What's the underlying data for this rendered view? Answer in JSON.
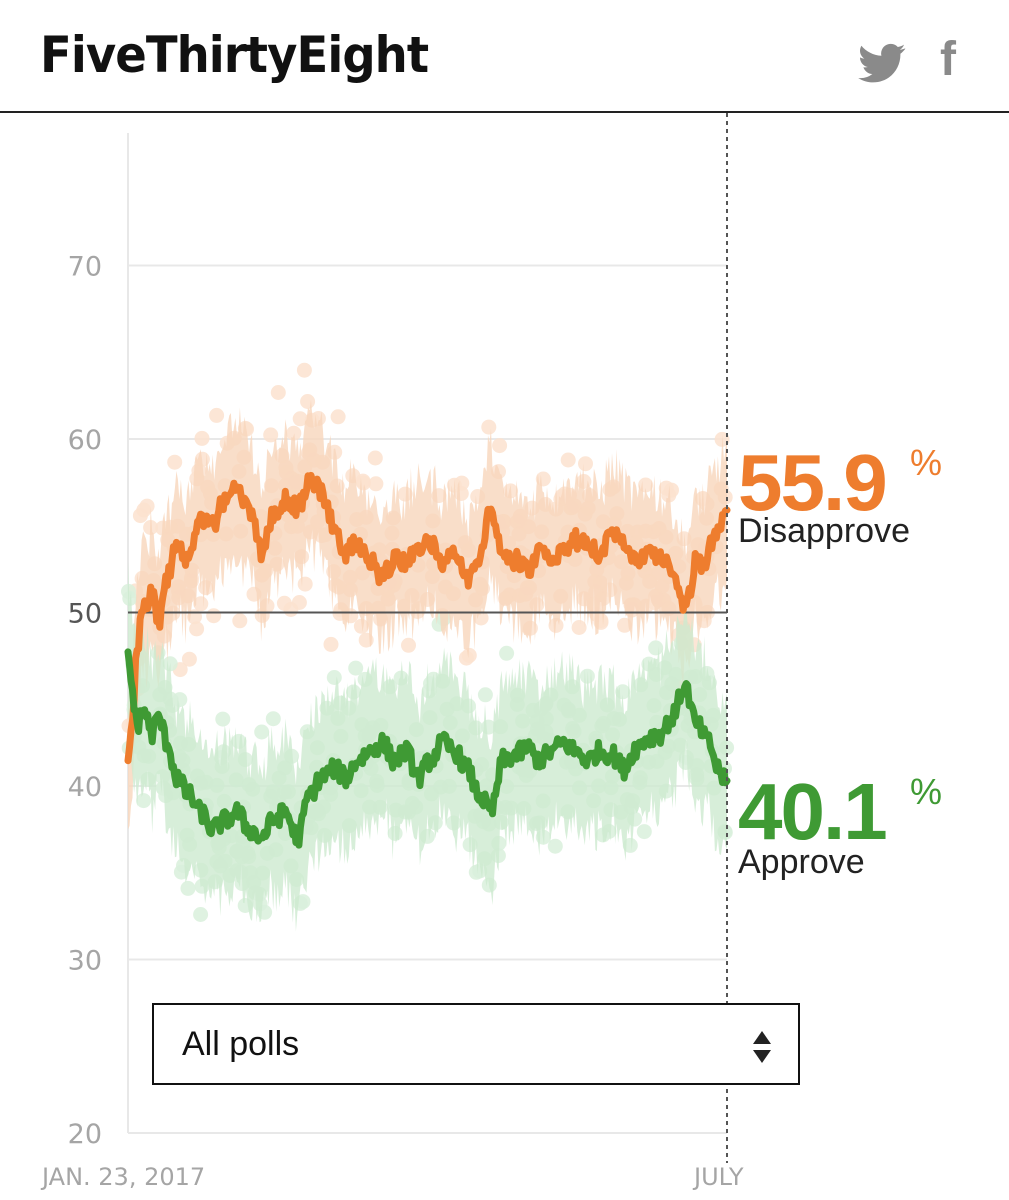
{
  "header": {
    "logo": "FiveThirtyEight",
    "social": [
      {
        "name": "twitter",
        "icon": "twitter-bird-icon"
      },
      {
        "name": "facebook",
        "icon": "facebook-f-icon",
        "glyph": "f"
      }
    ]
  },
  "filter": {
    "selected": "All polls"
  },
  "colors": {
    "disapprove": "#ee7d2e",
    "approve": "#3f9a34",
    "disapprove_band": "#f8d6bc",
    "approve_band": "#cdeacf",
    "disapprove_dot": "#fbe2cf",
    "approve_dot": "#d9f0dc",
    "grid": "#e8e8e8",
    "fifty_line": "#555555"
  },
  "chart_data": {
    "type": "line",
    "title": "",
    "xlabel": "",
    "ylabel": "",
    "x_start_label": "JAN. 23, 2017",
    "x_end_label": "JULY",
    "day_count": 160,
    "ylim": [
      20,
      78
    ],
    "yticks": [
      70,
      60,
      50,
      40,
      30,
      20
    ],
    "series": [
      {
        "name": "Disapprove",
        "final": "55.9",
        "unit": "%",
        "band_halfwidth": 3.2,
        "anchors": [
          [
            0,
            41.2
          ],
          [
            1,
            43
          ],
          [
            3,
            48
          ],
          [
            5,
            50.5
          ],
          [
            8,
            51
          ],
          [
            10,
            49.5
          ],
          [
            13,
            52
          ],
          [
            16,
            54
          ],
          [
            20,
            53
          ],
          [
            24,
            55.5
          ],
          [
            28,
            55
          ],
          [
            32,
            56.5
          ],
          [
            36,
            57.2
          ],
          [
            40,
            56
          ],
          [
            44,
            53.5
          ],
          [
            48,
            55.5
          ],
          [
            52,
            56.5
          ],
          [
            56,
            56
          ],
          [
            60,
            57.5
          ],
          [
            64,
            57
          ],
          [
            68,
            55
          ],
          [
            72,
            53.5
          ],
          [
            76,
            54
          ],
          [
            80,
            53
          ],
          [
            84,
            52
          ],
          [
            88,
            53
          ],
          [
            92,
            52.8
          ],
          [
            96,
            53.8
          ],
          [
            100,
            54
          ],
          [
            104,
            52.5
          ],
          [
            108,
            53.5
          ],
          [
            112,
            52
          ],
          [
            116,
            53
          ],
          [
            120,
            56
          ],
          [
            124,
            53.5
          ],
          [
            128,
            53
          ],
          [
            132,
            52.5
          ],
          [
            136,
            53.5
          ],
          [
            140,
            52.8
          ],
          [
            144,
            53.5
          ],
          [
            148,
            54.2
          ],
          [
            152,
            54
          ],
          [
            156,
            53.2
          ],
          [
            160,
            54.8
          ],
          [
            164,
            54.2
          ],
          [
            168,
            53
          ],
          [
            172,
            53.5
          ],
          [
            176,
            53
          ],
          [
            180,
            52.5
          ],
          [
            184,
            50
          ],
          [
            188,
            53
          ],
          [
            190,
            52.5
          ],
          [
            193,
            54
          ],
          [
            196,
            55
          ],
          [
            198,
            55.9
          ]
        ]
      },
      {
        "name": "Approve",
        "final": "40.1",
        "unit": "%",
        "band_halfwidth": 3.8,
        "anchors": [
          [
            0,
            47.8
          ],
          [
            1,
            46
          ],
          [
            3,
            43.5
          ],
          [
            5,
            44.5
          ],
          [
            8,
            43
          ],
          [
            10,
            44
          ],
          [
            13,
            42.5
          ],
          [
            16,
            40.5
          ],
          [
            20,
            39.5
          ],
          [
            24,
            38.5
          ],
          [
            28,
            37.5
          ],
          [
            32,
            38
          ],
          [
            36,
            38.5
          ],
          [
            40,
            37.5
          ],
          [
            44,
            37
          ],
          [
            48,
            38
          ],
          [
            52,
            38.5
          ],
          [
            56,
            37
          ],
          [
            60,
            39.5
          ],
          [
            64,
            40.5
          ],
          [
            68,
            41
          ],
          [
            72,
            40.5
          ],
          [
            76,
            41.5
          ],
          [
            80,
            42
          ],
          [
            84,
            42.5
          ],
          [
            88,
            41.5
          ],
          [
            92,
            42
          ],
          [
            96,
            40.5
          ],
          [
            100,
            41.5
          ],
          [
            104,
            42.5
          ],
          [
            108,
            42
          ],
          [
            112,
            41
          ],
          [
            116,
            39.5
          ],
          [
            120,
            38.5
          ],
          [
            124,
            41.5
          ],
          [
            128,
            41.8
          ],
          [
            132,
            42.2
          ],
          [
            136,
            41.5
          ],
          [
            140,
            42
          ],
          [
            144,
            42.5
          ],
          [
            148,
            42
          ],
          [
            152,
            41.5
          ],
          [
            156,
            42
          ],
          [
            160,
            41.8
          ],
          [
            164,
            41
          ],
          [
            168,
            42.2
          ],
          [
            172,
            42.8
          ],
          [
            176,
            43
          ],
          [
            180,
            44
          ],
          [
            184,
            45.8
          ],
          [
            188,
            43.5
          ],
          [
            192,
            42.5
          ],
          [
            195,
            41
          ],
          [
            198,
            40.1
          ]
        ]
      }
    ]
  }
}
